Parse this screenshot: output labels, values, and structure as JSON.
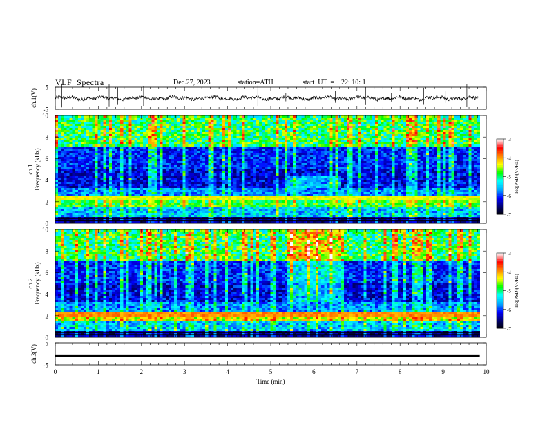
{
  "header": {
    "title": "VLF  Spectra",
    "date": "Dec.27, 2023",
    "station": "station=ATH",
    "start": "start  UT  =    22: 10: 1"
  },
  "chart_data": [
    {
      "type": "line",
      "ylabel": "ch.1(V)",
      "ylim": [
        -5,
        5
      ],
      "yticks": [
        "5",
        "-5"
      ],
      "xlim": [
        0,
        10
      ]
    },
    {
      "type": "heatmap",
      "ylabel": "ch.1\nFrequency (kHz)",
      "ylim": [
        0,
        10
      ],
      "yticks": [
        "0",
        "2",
        "4",
        "6",
        "8",
        "10"
      ],
      "xlim": [
        0,
        10
      ],
      "colorbar": {
        "label": "log(PSD)(V²/Hz)",
        "ticks": [
          "-3",
          "-4",
          "-5",
          "-6",
          "-7"
        ],
        "range": [
          -7,
          -3
        ]
      }
    },
    {
      "type": "heatmap",
      "ylabel": "ch.2\nFrequency (kHz)",
      "ylim": [
        0,
        10
      ],
      "yticks": [
        "0",
        "2",
        "4",
        "6",
        "8",
        "10"
      ],
      "xlim": [
        0,
        10
      ],
      "colorbar": {
        "label": "log(PSD)(V²/Hz)",
        "ticks": [
          "-3",
          "-4",
          "-5",
          "-6",
          "-7"
        ],
        "range": [
          -7,
          -3
        ]
      }
    },
    {
      "type": "line",
      "ylabel": "ch.3(V)",
      "ylim": [
        -5,
        5
      ],
      "yticks": [
        "5",
        "-5"
      ],
      "xlim": [
        0,
        10
      ],
      "xlabel": "Time  (min)",
      "xticks": [
        "0",
        "1",
        "2",
        "3",
        "4",
        "5",
        "6",
        "7",
        "8",
        "9",
        "10"
      ]
    }
  ],
  "colors": {
    "colormap": [
      "#000000",
      "#00006e",
      "#0000ff",
      "#00aaff",
      "#00ffff",
      "#00ff00",
      "#ffff00",
      "#ff8800",
      "#ff0000",
      "#ffffff"
    ],
    "trace": "#000000"
  }
}
